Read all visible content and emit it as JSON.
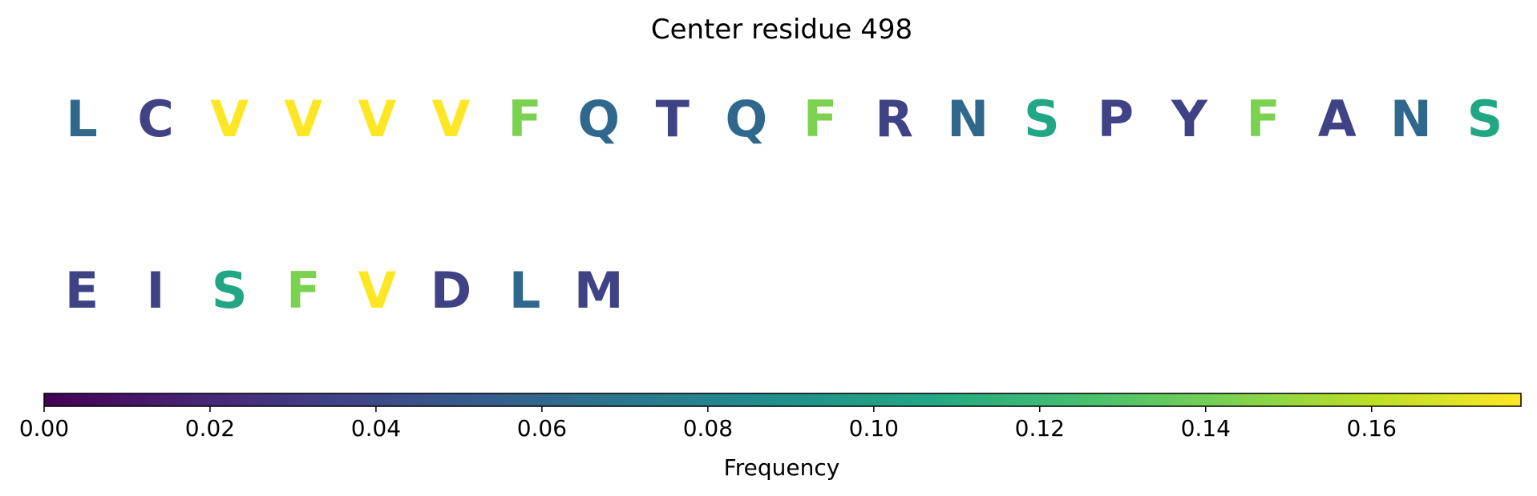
{
  "chart_data": {
    "type": "table",
    "title": "Center residue 498",
    "residues": [
      {
        "letter": "L",
        "frequency": 0.06
      },
      {
        "letter": "C",
        "frequency": 0.035
      },
      {
        "letter": "V",
        "frequency": 0.178
      },
      {
        "letter": "V",
        "frequency": 0.178
      },
      {
        "letter": "V",
        "frequency": 0.178
      },
      {
        "letter": "V",
        "frequency": 0.178
      },
      {
        "letter": "F",
        "frequency": 0.143
      },
      {
        "letter": "Q",
        "frequency": 0.06
      },
      {
        "letter": "T",
        "frequency": 0.035
      },
      {
        "letter": "Q",
        "frequency": 0.06
      },
      {
        "letter": "F",
        "frequency": 0.143
      },
      {
        "letter": "R",
        "frequency": 0.035
      },
      {
        "letter": "N",
        "frequency": 0.06
      },
      {
        "letter": "S",
        "frequency": 0.107
      },
      {
        "letter": "P",
        "frequency": 0.035
      },
      {
        "letter": "Y",
        "frequency": 0.035
      },
      {
        "letter": "F",
        "frequency": 0.143
      },
      {
        "letter": "A",
        "frequency": 0.035
      },
      {
        "letter": "N",
        "frequency": 0.06
      },
      {
        "letter": "S",
        "frequency": 0.107
      },
      {
        "letter": "E",
        "frequency": 0.035
      },
      {
        "letter": "I",
        "frequency": 0.035
      },
      {
        "letter": "S",
        "frequency": 0.107
      },
      {
        "letter": "F",
        "frequency": 0.143
      },
      {
        "letter": "V",
        "frequency": 0.178
      },
      {
        "letter": "D",
        "frequency": 0.035
      },
      {
        "letter": "L",
        "frequency": 0.06
      },
      {
        "letter": "M",
        "frequency": 0.035
      }
    ],
    "colorbar": {
      "label": "Frequency",
      "colormap": "viridis",
      "range": [
        0.0,
        0.178
      ],
      "ticks": [
        0.0,
        0.02,
        0.04,
        0.06,
        0.08,
        0.1,
        0.12,
        0.14,
        0.16
      ],
      "tick_labels": [
        "0.00",
        "0.02",
        "0.04",
        "0.06",
        "0.08",
        "0.10",
        "0.12",
        "0.14",
        "0.16"
      ],
      "orientation": "horizontal"
    }
  }
}
